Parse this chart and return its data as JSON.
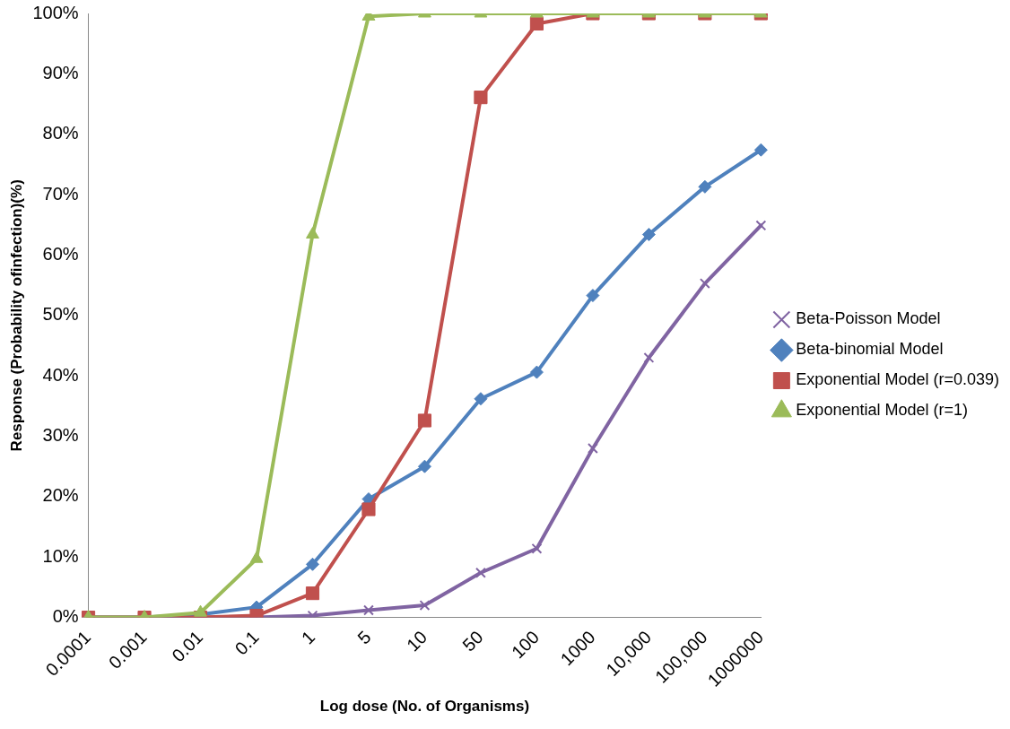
{
  "chart_data": {
    "type": "line",
    "xlabel": "Log dose (No. of Organisms)",
    "ylabel": "Response (Probability ofinfection)(%)",
    "categories": [
      "0.0001",
      "0.001",
      "0.01",
      "0.1",
      "1",
      "5",
      "10",
      "50",
      "100",
      "1000",
      "10,000",
      "100,000",
      "1000000"
    ],
    "ylim": [
      0,
      100
    ],
    "yticks": [
      {
        "value": 0,
        "label": "0%"
      },
      {
        "value": 10,
        "label": "10%"
      },
      {
        "value": 20,
        "label": "20%"
      },
      {
        "value": 30,
        "label": "30%"
      },
      {
        "value": 40,
        "label": "40%"
      },
      {
        "value": 50,
        "label": "50%"
      },
      {
        "value": 60,
        "label": "60%"
      },
      {
        "value": 70,
        "label": "70%"
      },
      {
        "value": 80,
        "label": "80%"
      },
      {
        "value": 90,
        "label": "90%"
      },
      {
        "value": 100,
        "label": "100%"
      }
    ],
    "legend": "right",
    "line_style": "solid",
    "series": [
      {
        "name": "Beta-Poisson Model",
        "color": "#8064a2",
        "marker": "cross",
        "values": [
          0,
          0,
          0,
          0,
          0.3,
          1.2,
          2,
          7.4,
          11.4,
          28,
          43,
          55.3,
          64.9
        ]
      },
      {
        "name": "Beta-binomial Model",
        "color": "#4f81bd",
        "marker": "diamond",
        "values": [
          0,
          0,
          0.5,
          1.7,
          8.8,
          19.6,
          25,
          36.2,
          40.6,
          53.3,
          63.4,
          71.3,
          77.4
        ]
      },
      {
        "name": "Exponential Model (r=0.039)",
        "color": "#c0504d",
        "marker": "square",
        "values": [
          0,
          0,
          0,
          0.3,
          4,
          17.9,
          32.6,
          86.1,
          98.3,
          100,
          100,
          100,
          100
        ]
      },
      {
        "name": "Exponential Model (r=1)",
        "color": "#9bbb59",
        "marker": "triangle",
        "values": [
          0,
          0,
          0.8,
          9.7,
          63.4,
          99.5,
          100,
          100,
          100,
          100,
          100,
          100,
          100
        ]
      }
    ]
  }
}
